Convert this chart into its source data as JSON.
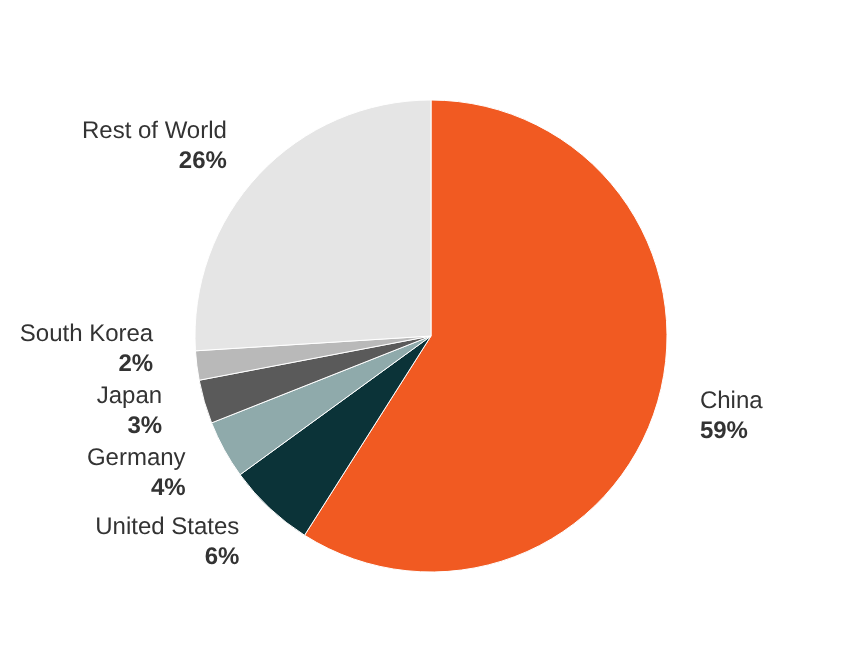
{
  "chart_data": {
    "type": "pie",
    "categories": [
      "China",
      "United States",
      "Germany",
      "Japan",
      "South Korea",
      "Rest of World"
    ],
    "values": [
      59,
      6,
      4,
      3,
      2,
      26
    ],
    "value_labels": [
      "59%",
      "6%",
      "4%",
      "3%",
      "2%",
      "26%"
    ],
    "colors": [
      "#f15a22",
      "#0b3338",
      "#8faaab",
      "#5a5a5a",
      "#b9b9b9",
      "#e5e5e5"
    ],
    "legend": false
  }
}
